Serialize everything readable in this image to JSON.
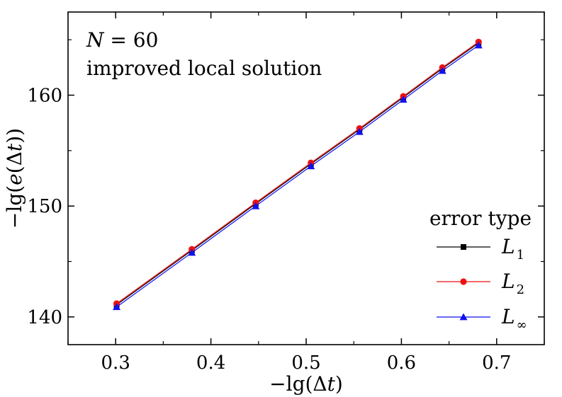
{
  "chart_data": {
    "type": "line",
    "xlabel": "−lg(Δt)",
    "ylabel": "−lg(e(Δt))",
    "xlim": [
      0.25,
      0.75
    ],
    "ylim": [
      137.5,
      167.5
    ],
    "x_ticks": [
      0.3,
      0.4,
      0.5,
      0.6,
      0.7
    ],
    "x_tick_labels": [
      "0.3",
      "0.4",
      "0.5",
      "0.6",
      "0.7"
    ],
    "y_ticks": [
      140,
      150,
      160
    ],
    "y_tick_labels": [
      "140",
      "150",
      "160"
    ],
    "grid": false,
    "annotations": {
      "line1_var": "N",
      "line1_rest": " = 60",
      "line2": "improved local solution"
    },
    "legend": {
      "title": "error type",
      "placement": "bottom-right"
    },
    "x": [
      0.301,
      0.38,
      0.447,
      0.505,
      0.556,
      0.602,
      0.643,
      0.681
    ],
    "series": [
      {
        "name": "L1",
        "label_main": "L",
        "label_sub": "1",
        "color": "#000000",
        "marker": "square",
        "values": [
          141.1,
          146.0,
          150.2,
          153.8,
          156.9,
          159.8,
          162.4,
          164.7
        ]
      },
      {
        "name": "L2",
        "label_main": "L",
        "label_sub": "2",
        "color": "#ee1111",
        "marker": "circle",
        "values": [
          141.2,
          146.1,
          150.3,
          153.9,
          157.0,
          159.9,
          162.5,
          164.8
        ]
      },
      {
        "name": "L∞",
        "label_main": "L",
        "label_sub": "∞",
        "color": "#1111ee",
        "marker": "triangle",
        "values": [
          140.9,
          145.8,
          150.0,
          153.6,
          156.7,
          159.6,
          162.2,
          164.5
        ]
      }
    ]
  }
}
